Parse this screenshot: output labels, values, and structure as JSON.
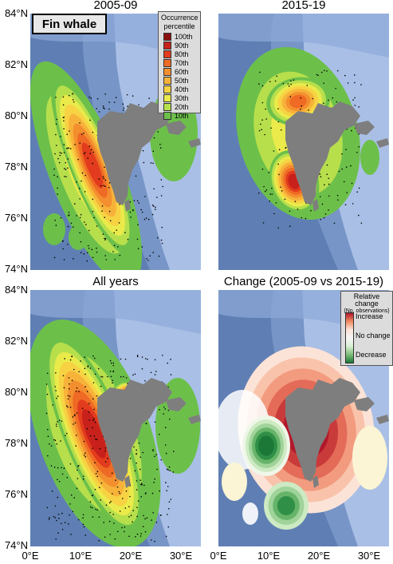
{
  "figure": {
    "species_label": "Fin whale",
    "panels": [
      {
        "id": "p1",
        "title": "2005-09",
        "kind": "occurrence",
        "hotspot": "west-shelf"
      },
      {
        "id": "p2",
        "title": "2015-19",
        "kind": "occurrence",
        "hotspot": "north-and-south"
      },
      {
        "id": "p3",
        "title": "All years",
        "kind": "occurrence",
        "hotspot": "combined"
      },
      {
        "id": "p4",
        "title": "Change (2005-09 vs 2015-19)",
        "kind": "change",
        "hotspot": "change"
      }
    ],
    "y_ticks": [
      "84°N",
      "82°N",
      "80°N",
      "78°N",
      "76°N",
      "74°N"
    ],
    "x_ticks": [
      "0°E",
      "10°E",
      "20°E",
      "30°E"
    ],
    "occurrence_legend": {
      "title_line1": "Occurrence",
      "title_line2": "percentile",
      "entries": [
        {
          "label": "100th",
          "color": "#8b0f0f"
        },
        {
          "label": "90th",
          "color": "#c8211b"
        },
        {
          "label": "80th",
          "color": "#e23b1d"
        },
        {
          "label": "70th",
          "color": "#ef6a24"
        },
        {
          "label": "60th",
          "color": "#f38f2e"
        },
        {
          "label": "50th",
          "color": "#f7b23a"
        },
        {
          "label": "40th",
          "color": "#f7d243"
        },
        {
          "label": "30th",
          "color": "#eaea4a"
        },
        {
          "label": "20th",
          "color": "#b7df4c"
        },
        {
          "label": "10th",
          "color": "#6cc04a"
        }
      ]
    },
    "change_legend": {
      "title": "Relative change",
      "subtitle": "(No. observations)",
      "increase": "Increase",
      "no_change": "No change",
      "decrease": "Decrease"
    },
    "colors": {
      "deep_ocean": "#5f7fb4",
      "mid_ocean": "#7795c7",
      "shelf": "#a9bfe6",
      "land": "#7e7e7e",
      "increase": "#b2182b",
      "decrease": "#1b7837"
    }
  }
}
